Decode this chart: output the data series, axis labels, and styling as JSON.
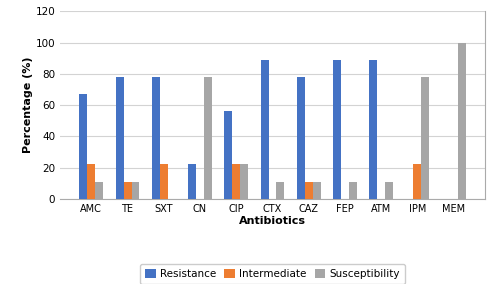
{
  "categories": [
    "AMC",
    "TE",
    "SXT",
    "CN",
    "CIP",
    "CTX",
    "CAZ",
    "FEP",
    "ATM",
    "IPM",
    "MEM"
  ],
  "resistance": [
    67,
    78,
    78,
    22,
    56,
    89,
    78,
    89,
    89,
    0,
    0
  ],
  "intermediate": [
    22,
    11,
    22,
    0,
    22,
    0,
    11,
    0,
    0,
    22,
    0
  ],
  "susceptibility": [
    11,
    11,
    0,
    78,
    22,
    11,
    11,
    11,
    11,
    78,
    100
  ],
  "bar_colors": {
    "resistance": "#4472C4",
    "intermediate": "#ED7D31",
    "susceptibility": "#A6A6A6"
  },
  "bar_width": 0.22,
  "xlabel": "Antibiotics",
  "ylabel": "Percentage (%)",
  "ylim": [
    0,
    120
  ],
  "yticks": [
    0,
    20,
    40,
    60,
    80,
    100,
    120
  ],
  "legend_labels": [
    "Resistance",
    "Intermediate",
    "Susceptibility"
  ],
  "grid_color": "#D3D3D3"
}
